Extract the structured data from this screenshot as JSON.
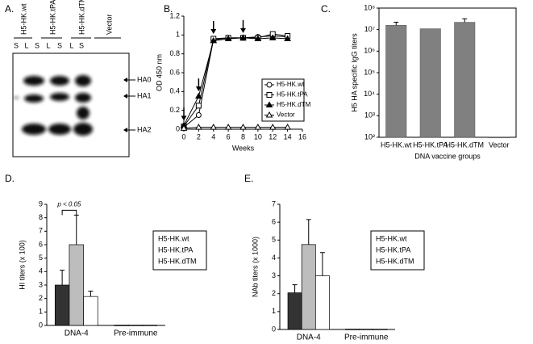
{
  "blot": {
    "label": "A.",
    "groups": [
      "H5-HK.wt",
      "H5-HK.tPA",
      "H5-HK.dTM",
      "Vector"
    ],
    "lanes": [
      "S",
      "L",
      "S",
      "L",
      "S",
      "L",
      "S"
    ],
    "bands": [
      "HA0",
      "HA1",
      "HA2"
    ]
  },
  "chart_data": [
    {
      "panel": "B.",
      "type": "line",
      "xlabel": "Weeks",
      "ylabel": "OD 450 nm",
      "x": [
        0,
        2,
        4,
        6,
        8,
        10,
        12,
        14
      ],
      "xlim": [
        0,
        16
      ],
      "xticks": [
        0,
        2,
        4,
        6,
        8,
        10,
        12,
        14,
        16
      ],
      "ylim": [
        0,
        1.2
      ],
      "yticks": [
        0,
        0.2,
        0.4,
        0.6,
        0.8,
        1,
        1.2
      ],
      "arrows_x": [
        0,
        2,
        4,
        8
      ],
      "series": [
        {
          "name": "H5-HK.wt",
          "marker": "circle-open",
          "color": "#000000",
          "values": [
            0.02,
            0.15,
            0.95,
            0.97,
            0.97,
            0.98,
            0.99,
            0.98
          ]
        },
        {
          "name": "H5-HK.tPA",
          "marker": "square-open",
          "color": "#000000",
          "values": [
            0.03,
            0.25,
            0.96,
            0.97,
            0.97,
            0.97,
            1.01,
            0.99
          ]
        },
        {
          "name": "H5-HK.dTM",
          "marker": "triangle-filled",
          "color": "#000000",
          "values": [
            0.04,
            0.35,
            0.94,
            0.96,
            0.97,
            0.96,
            0.97,
            0.96
          ]
        },
        {
          "name": "Vector",
          "marker": "triangle-open",
          "color": "#000000",
          "values": [
            0.01,
            0.02,
            0.02,
            0.02,
            0.02,
            0.02,
            0.02,
            0.02
          ]
        }
      ]
    },
    {
      "panel": "C.",
      "type": "bar",
      "xlabel": "DNA vaccine groups",
      "ylabel": "H5 HA specific IgG titers",
      "log_scale": true,
      "categories": [
        "H5-HK.wt",
        "H5-HK.tPA",
        "H5-HK.dTM",
        "Vector"
      ],
      "values": [
        16000000,
        11000000,
        22000000,
        100
      ],
      "errors": [
        6000000,
        0,
        10000000,
        0
      ],
      "color": "#808080",
      "ylim": [
        100,
        100000000
      ],
      "yticks": [
        {
          "value": 100,
          "label": "10²"
        },
        {
          "value": 1000,
          "label": "10³"
        },
        {
          "value": 10000,
          "label": "10⁴"
        },
        {
          "value": 100000,
          "label": "10⁵"
        },
        {
          "value": 1000000,
          "label": "10⁶"
        },
        {
          "value": 10000000,
          "label": "10⁷"
        },
        {
          "value": 100000000,
          "label": "10⁸"
        }
      ]
    },
    {
      "panel": "D.",
      "type": "grouped_bar",
      "ylabel": "HI titers (x 100)",
      "annotation": "p < 0.05",
      "categories": [
        "DNA-4",
        "Pre-immune"
      ],
      "ylim": [
        0,
        9
      ],
      "yticks": [
        0,
        1,
        2,
        3,
        4,
        5,
        6,
        7,
        8,
        9
      ],
      "series": [
        {
          "name": "H5-HK.wt",
          "color": "#333333",
          "values": [
            3.0,
            0.02
          ],
          "errors": [
            1.1,
            0
          ]
        },
        {
          "name": "H5-HK.tPA",
          "color": "#bdbdbd",
          "values": [
            6.0,
            0.02
          ],
          "errors": [
            2.2,
            0
          ]
        },
        {
          "name": "H5-HK.dTM",
          "color": "#ffffff",
          "values": [
            2.15,
            0.02
          ],
          "errors": [
            0.4,
            0
          ]
        }
      ]
    },
    {
      "panel": "E.",
      "type": "grouped_bar",
      "ylabel": "NAb titers (x 1000)",
      "categories": [
        "DNA-4",
        "Pre-immune"
      ],
      "ylim": [
        0,
        7
      ],
      "yticks": [
        0,
        1,
        2,
        3,
        4,
        5,
        6,
        7
      ],
      "series": [
        {
          "name": "H5-HK.wt",
          "color": "#333333",
          "values": [
            2.05,
            0.02
          ],
          "errors": [
            0.45,
            0
          ]
        },
        {
          "name": "H5-HK.tPA",
          "color": "#bdbdbd",
          "values": [
            4.75,
            0.02
          ],
          "errors": [
            1.4,
            0
          ]
        },
        {
          "name": "H5-HK.dTM",
          "color": "#ffffff",
          "values": [
            3.0,
            0.02
          ],
          "errors": [
            1.3,
            0
          ]
        }
      ]
    }
  ]
}
